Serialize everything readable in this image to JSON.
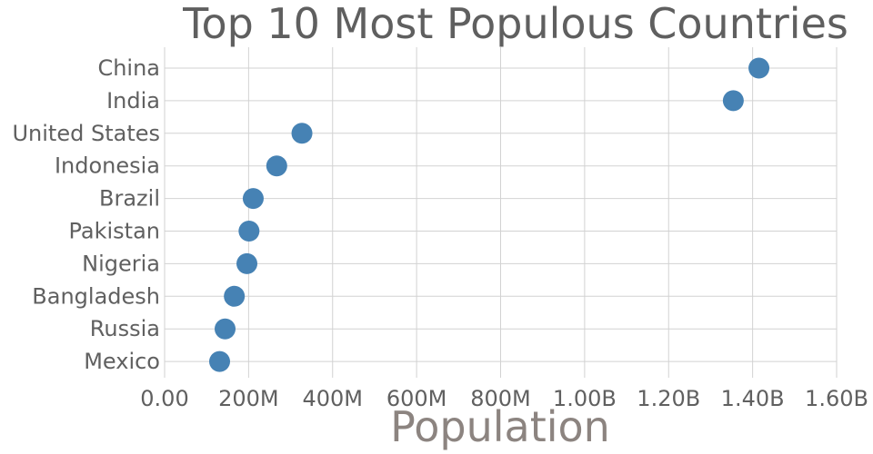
{
  "chart_data": {
    "type": "scatter",
    "title": "Top 10 Most Populous Countries",
    "xlabel": "Population",
    "ylabel": "",
    "categories": [
      "China",
      "India",
      "United States",
      "Indonesia",
      "Brazil",
      "Pakistan",
      "Nigeria",
      "Bangladesh",
      "Russia",
      "Mexico"
    ],
    "values": [
      1415000000,
      1354000000,
      327000000,
      267000000,
      211000000,
      201000000,
      196000000,
      166000000,
      144000000,
      131000000
    ],
    "xlim": [
      0,
      1600000000
    ],
    "xticks": [
      0,
      200000000,
      400000000,
      600000000,
      800000000,
      1000000000,
      1200000000,
      1400000000,
      1600000000
    ],
    "xtick_labels": [
      "0.00",
      "200M",
      "400M",
      "600M",
      "800M",
      "1.00B",
      "1.20B",
      "1.40B",
      "1.60B"
    ],
    "grid": true,
    "marker_color": "#4682b4"
  }
}
